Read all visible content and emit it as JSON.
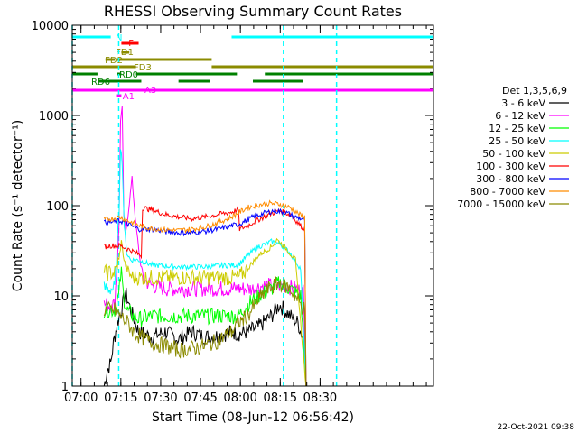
{
  "chart_data": {
    "type": "line",
    "title": "RHESSI Observing Summary Count Rates",
    "xlabel": "Start Time (08-Jun-12 06:56:42)",
    "ylabel": "Count Rate (s⁻¹ detector⁻¹)",
    "yscale": "log",
    "ylim": [
      1,
      10000
    ],
    "xlim_min": [
      0,
      136
    ],
    "x_ticks": [
      {
        "min": 3.3,
        "label": "07:00"
      },
      {
        "min": 18.3,
        "label": "07:15"
      },
      {
        "min": 33.3,
        "label": "07:30"
      },
      {
        "min": 48.3,
        "label": "07:45"
      },
      {
        "min": 63.3,
        "label": "08:00"
      },
      {
        "min": 78.3,
        "label": "08:15"
      },
      {
        "min": 93.3,
        "label": "08:30"
      }
    ],
    "y_ticks": [
      {
        "v": 1,
        "label": "1"
      },
      {
        "v": 10,
        "label": "10"
      },
      {
        "v": 100,
        "label": "100"
      },
      {
        "v": 1000,
        "label": "1000"
      },
      {
        "v": 10000,
        "label": "10000"
      }
    ],
    "legend_title": "Det 1,3,5,6,9",
    "series": [
      {
        "name": "3 - 6 keV",
        "color": "#000000",
        "points": [
          [
            12,
            1
          ],
          [
            13.2,
            1.5
          ],
          [
            14.5,
            1.8
          ],
          [
            15.5,
            3
          ],
          [
            17,
            5
          ],
          [
            19,
            8
          ],
          [
            20,
            11
          ],
          [
            22,
            7
          ],
          [
            25,
            4
          ],
          [
            30,
            3.5
          ],
          [
            35,
            4
          ],
          [
            40,
            3.3
          ],
          [
            45,
            4
          ],
          [
            50,
            3.5
          ],
          [
            55,
            3.6
          ],
          [
            60,
            4
          ],
          [
            62.5,
            3.8
          ],
          [
            66,
            4
          ],
          [
            70,
            4.5
          ],
          [
            75,
            6
          ],
          [
            78,
            8
          ],
          [
            82,
            6
          ],
          [
            85,
            5
          ],
          [
            87.5,
            3
          ],
          [
            88,
            1
          ]
        ]
      },
      {
        "name": "6 - 12 keV",
        "color": "#ff00ff",
        "points": [
          [
            12,
            8
          ],
          [
            14,
            8
          ],
          [
            16,
            8
          ],
          [
            17.6,
            60
          ],
          [
            18.2,
            900
          ],
          [
            18.8,
            1200
          ],
          [
            19.4,
            80
          ],
          [
            20.2,
            50
          ],
          [
            21.2,
            90
          ],
          [
            22.5,
            200
          ],
          [
            24,
            60
          ],
          [
            25.5,
            25
          ],
          [
            27,
            15
          ],
          [
            30,
            13
          ],
          [
            35,
            12
          ],
          [
            40,
            12
          ],
          [
            45,
            12
          ],
          [
            50,
            12
          ],
          [
            55,
            12
          ],
          [
            60,
            12
          ],
          [
            62.5,
            12
          ],
          [
            64,
            12
          ],
          [
            68,
            12
          ],
          [
            72,
            13
          ],
          [
            76,
            13
          ],
          [
            80,
            13
          ],
          [
            84,
            12
          ],
          [
            87,
            11
          ],
          [
            88,
            1
          ]
        ]
      },
      {
        "name": "12 - 25 keV",
        "color": "#00ff00",
        "points": [
          [
            12,
            7
          ],
          [
            16,
            7
          ],
          [
            17.5,
            10
          ],
          [
            18.5,
            20
          ],
          [
            19.3,
            10
          ],
          [
            20.5,
            7
          ],
          [
            23,
            6
          ],
          [
            25,
            5.5
          ],
          [
            30,
            6
          ],
          [
            40,
            6
          ],
          [
            50,
            6
          ],
          [
            60,
            6
          ],
          [
            62.5,
            6
          ],
          [
            66,
            8
          ],
          [
            70,
            10
          ],
          [
            75,
            12
          ],
          [
            78,
            14
          ],
          [
            82,
            12
          ],
          [
            86,
            10
          ],
          [
            88,
            1
          ]
        ]
      },
      {
        "name": "25 - 50 keV",
        "color": "#00ffff",
        "points": [
          [
            12,
            12
          ],
          [
            16,
            12
          ],
          [
            17.6,
            80
          ],
          [
            18.2,
            450
          ],
          [
            18.8,
            300
          ],
          [
            19.6,
            60
          ],
          [
            20.5,
            30
          ],
          [
            22,
            25
          ],
          [
            25,
            25
          ],
          [
            30,
            22
          ],
          [
            40,
            21
          ],
          [
            50,
            21
          ],
          [
            60,
            22
          ],
          [
            62.5,
            22
          ],
          [
            66,
            28
          ],
          [
            70,
            35
          ],
          [
            75,
            40
          ],
          [
            78,
            38
          ],
          [
            82,
            30
          ],
          [
            86,
            20
          ],
          [
            88,
            1
          ]
        ]
      },
      {
        "name": "50 - 100 keV",
        "color": "#cccc00",
        "points": [
          [
            12,
            18
          ],
          [
            16,
            18
          ],
          [
            17.6,
            25
          ],
          [
            18.5,
            40
          ],
          [
            19.5,
            25
          ],
          [
            21,
            18
          ],
          [
            23,
            16
          ],
          [
            25,
            16
          ],
          [
            30,
            16
          ],
          [
            40,
            16
          ],
          [
            50,
            16
          ],
          [
            60,
            16
          ],
          [
            62.5,
            16
          ],
          [
            66,
            20
          ],
          [
            70,
            28
          ],
          [
            75,
            35
          ],
          [
            77,
            42
          ],
          [
            80,
            35
          ],
          [
            84,
            25
          ],
          [
            88,
            1
          ]
        ]
      },
      {
        "name": "100 - 300 keV",
        "color": "#ff0000",
        "points": [
          [
            12,
            35
          ],
          [
            14,
            36
          ],
          [
            16,
            36
          ],
          [
            18,
            36
          ],
          [
            20,
            34
          ],
          [
            22,
            32
          ],
          [
            24,
            30
          ],
          [
            26,
            28
          ],
          [
            26.5,
            95
          ],
          [
            30,
            90
          ],
          [
            35,
            80
          ],
          [
            40,
            75
          ],
          [
            45,
            72
          ],
          [
            50,
            75
          ],
          [
            55,
            80
          ],
          [
            60,
            85
          ],
          [
            62.5,
            90
          ],
          [
            63,
            55
          ],
          [
            66,
            60
          ],
          [
            70,
            70
          ],
          [
            74,
            80
          ],
          [
            78,
            88
          ],
          [
            82,
            80
          ],
          [
            86,
            60
          ],
          [
            87.5,
            55
          ],
          [
            88,
            1
          ]
        ]
      },
      {
        "name": "300 - 800 keV",
        "color": "#0000ff",
        "points": [
          [
            12,
            65
          ],
          [
            16,
            66
          ],
          [
            18,
            68
          ],
          [
            20,
            65
          ],
          [
            22,
            60
          ],
          [
            25,
            55
          ],
          [
            30,
            55
          ],
          [
            35,
            52
          ],
          [
            40,
            50
          ],
          [
            45,
            50
          ],
          [
            50,
            52
          ],
          [
            55,
            55
          ],
          [
            60,
            60
          ],
          [
            62.5,
            62
          ],
          [
            64,
            65
          ],
          [
            68,
            75
          ],
          [
            72,
            82
          ],
          [
            76,
            88
          ],
          [
            80,
            85
          ],
          [
            84,
            75
          ],
          [
            87.5,
            70
          ],
          [
            88,
            1
          ]
        ]
      },
      {
        "name": "800 - 7000 keV",
        "color": "#ff8c00",
        "points": [
          [
            12,
            70
          ],
          [
            15,
            72
          ],
          [
            18,
            75
          ],
          [
            21,
            68
          ],
          [
            24,
            62
          ],
          [
            27,
            58
          ],
          [
            30,
            56
          ],
          [
            35,
            54
          ],
          [
            40,
            53
          ],
          [
            45,
            55
          ],
          [
            50,
            58
          ],
          [
            55,
            65
          ],
          [
            60,
            75
          ],
          [
            63,
            85
          ],
          [
            66,
            95
          ],
          [
            70,
            102
          ],
          [
            74,
            106
          ],
          [
            78,
            104
          ],
          [
            82,
            95
          ],
          [
            86,
            78
          ],
          [
            87.5,
            75
          ],
          [
            88,
            1
          ]
        ]
      },
      {
        "name": "7000 - 15000 keV",
        "color": "#8b8b00",
        "points": [
          [
            12,
            7
          ],
          [
            16,
            7
          ],
          [
            18,
            6
          ],
          [
            21,
            5
          ],
          [
            23,
            4
          ],
          [
            26,
            3.5
          ],
          [
            30,
            3
          ],
          [
            35,
            2.8
          ],
          [
            40,
            2.5
          ],
          [
            45,
            2.6
          ],
          [
            50,
            2.8
          ],
          [
            55,
            3.2
          ],
          [
            60,
            4
          ],
          [
            62.5,
            5
          ],
          [
            66,
            6
          ],
          [
            70,
            9
          ],
          [
            74,
            12
          ],
          [
            78,
            14
          ],
          [
            82,
            12
          ],
          [
            86,
            8
          ],
          [
            87.5,
            7
          ],
          [
            88,
            1
          ]
        ]
      }
    ],
    "flag_bars": [
      {
        "label": "N",
        "color": "#00ffff",
        "segments": [
          [
            0,
            14.5
          ],
          [
            60,
            136
          ]
        ]
      },
      {
        "label": "F",
        "color": "#ff0000",
        "segments": [
          [
            18.5,
            25
          ]
        ]
      },
      {
        "label": "FD1",
        "color": "#8b8b00",
        "segments": [
          [
            18.5,
            21.5
          ]
        ]
      },
      {
        "label": "FD2",
        "color": "#8b8b00",
        "segments": [
          [
            12.5,
            16
          ],
          [
            17,
            52.5
          ]
        ]
      },
      {
        "label": "FD3",
        "color": "#8b8b00",
        "segments": [
          [
            0,
            24
          ],
          [
            52.5,
            136
          ]
        ]
      },
      {
        "label": "RD0",
        "color": "#008000",
        "segments": [
          [
            0,
            9.5
          ],
          [
            17,
            18.5
          ],
          [
            24,
            62
          ],
          [
            72.5,
            136
          ]
        ]
      },
      {
        "label": "RD6",
        "color": "#008000",
        "segments": [
          [
            10,
            26
          ],
          [
            40,
            52
          ],
          [
            68,
            87
          ]
        ]
      },
      {
        "label": "A1",
        "color": "#ff00ff",
        "segments": [
          [
            0,
            136
          ]
        ]
      },
      {
        "label": "A3",
        "color": "#ff00ff",
        "segments": [
          [
            16.5,
            18.5
          ]
        ]
      }
    ],
    "saa_lines_min": [
      0,
      17.5,
      79.5,
      99.5
    ],
    "grid": false,
    "legend_placement": "right",
    "footer_date": "22-Oct-2021 09:38"
  }
}
